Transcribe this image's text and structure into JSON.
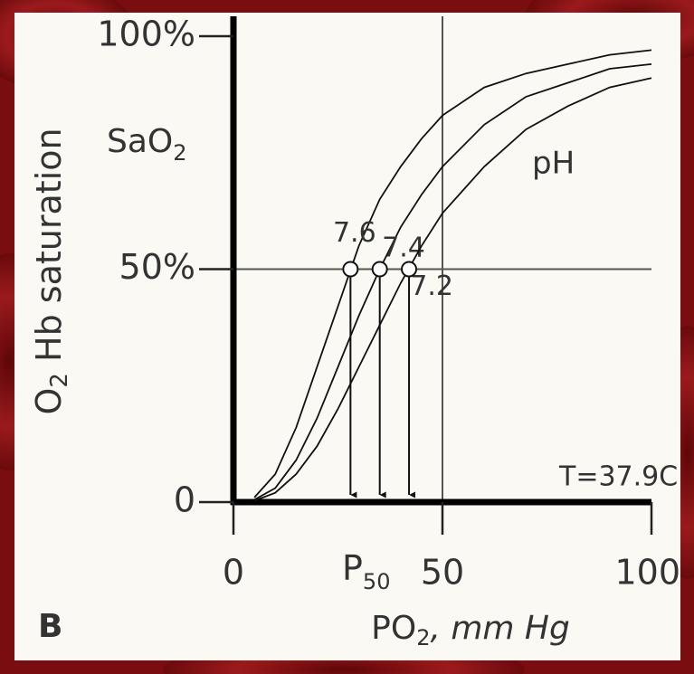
{
  "chart_data": {
    "type": "line",
    "panel_label": "B",
    "ylabel": [
      "O",
      "2",
      " Hb saturation"
    ],
    "xlabel": [
      "PO",
      "2",
      ", mm Hg"
    ],
    "y_annotation": [
      "SaO",
      "2"
    ],
    "x_annotation": [
      "P",
      "50"
    ],
    "legend_title": "pH",
    "note": "T=37.9C",
    "x": [
      5,
      10,
      15,
      20,
      25,
      30,
      35,
      40,
      45,
      50,
      60,
      70,
      80,
      90,
      100
    ],
    "series": [
      {
        "name": "7.6",
        "color": "#111111",
        "values": [
          1,
          6,
          16,
          29,
          42,
          55,
          65,
          72,
          78,
          83,
          89,
          92,
          94,
          96,
          97
        ]
      },
      {
        "name": "7.4",
        "color": "#111111",
        "values": [
          0.5,
          3,
          9,
          18,
          29,
          40,
          50,
          59,
          66,
          72,
          81,
          87,
          90,
          93,
          94
        ]
      },
      {
        "name": "7.2",
        "color": "#111111",
        "values": [
          0.3,
          2,
          6,
          12,
          20,
          29,
          38,
          47,
          55,
          62,
          72,
          80,
          85,
          89,
          91
        ]
      }
    ],
    "p50": {
      "x": [
        28,
        35,
        42
      ],
      "y": [
        50,
        50,
        50
      ]
    },
    "xlim": [
      0,
      100
    ],
    "ylim": [
      0,
      100
    ],
    "xticks": [
      0,
      50,
      100
    ],
    "yticks": [
      0,
      {
        "value": 50,
        "label": "50%"
      },
      {
        "value": 100,
        "label": "100%"
      }
    ],
    "grid": true
  }
}
